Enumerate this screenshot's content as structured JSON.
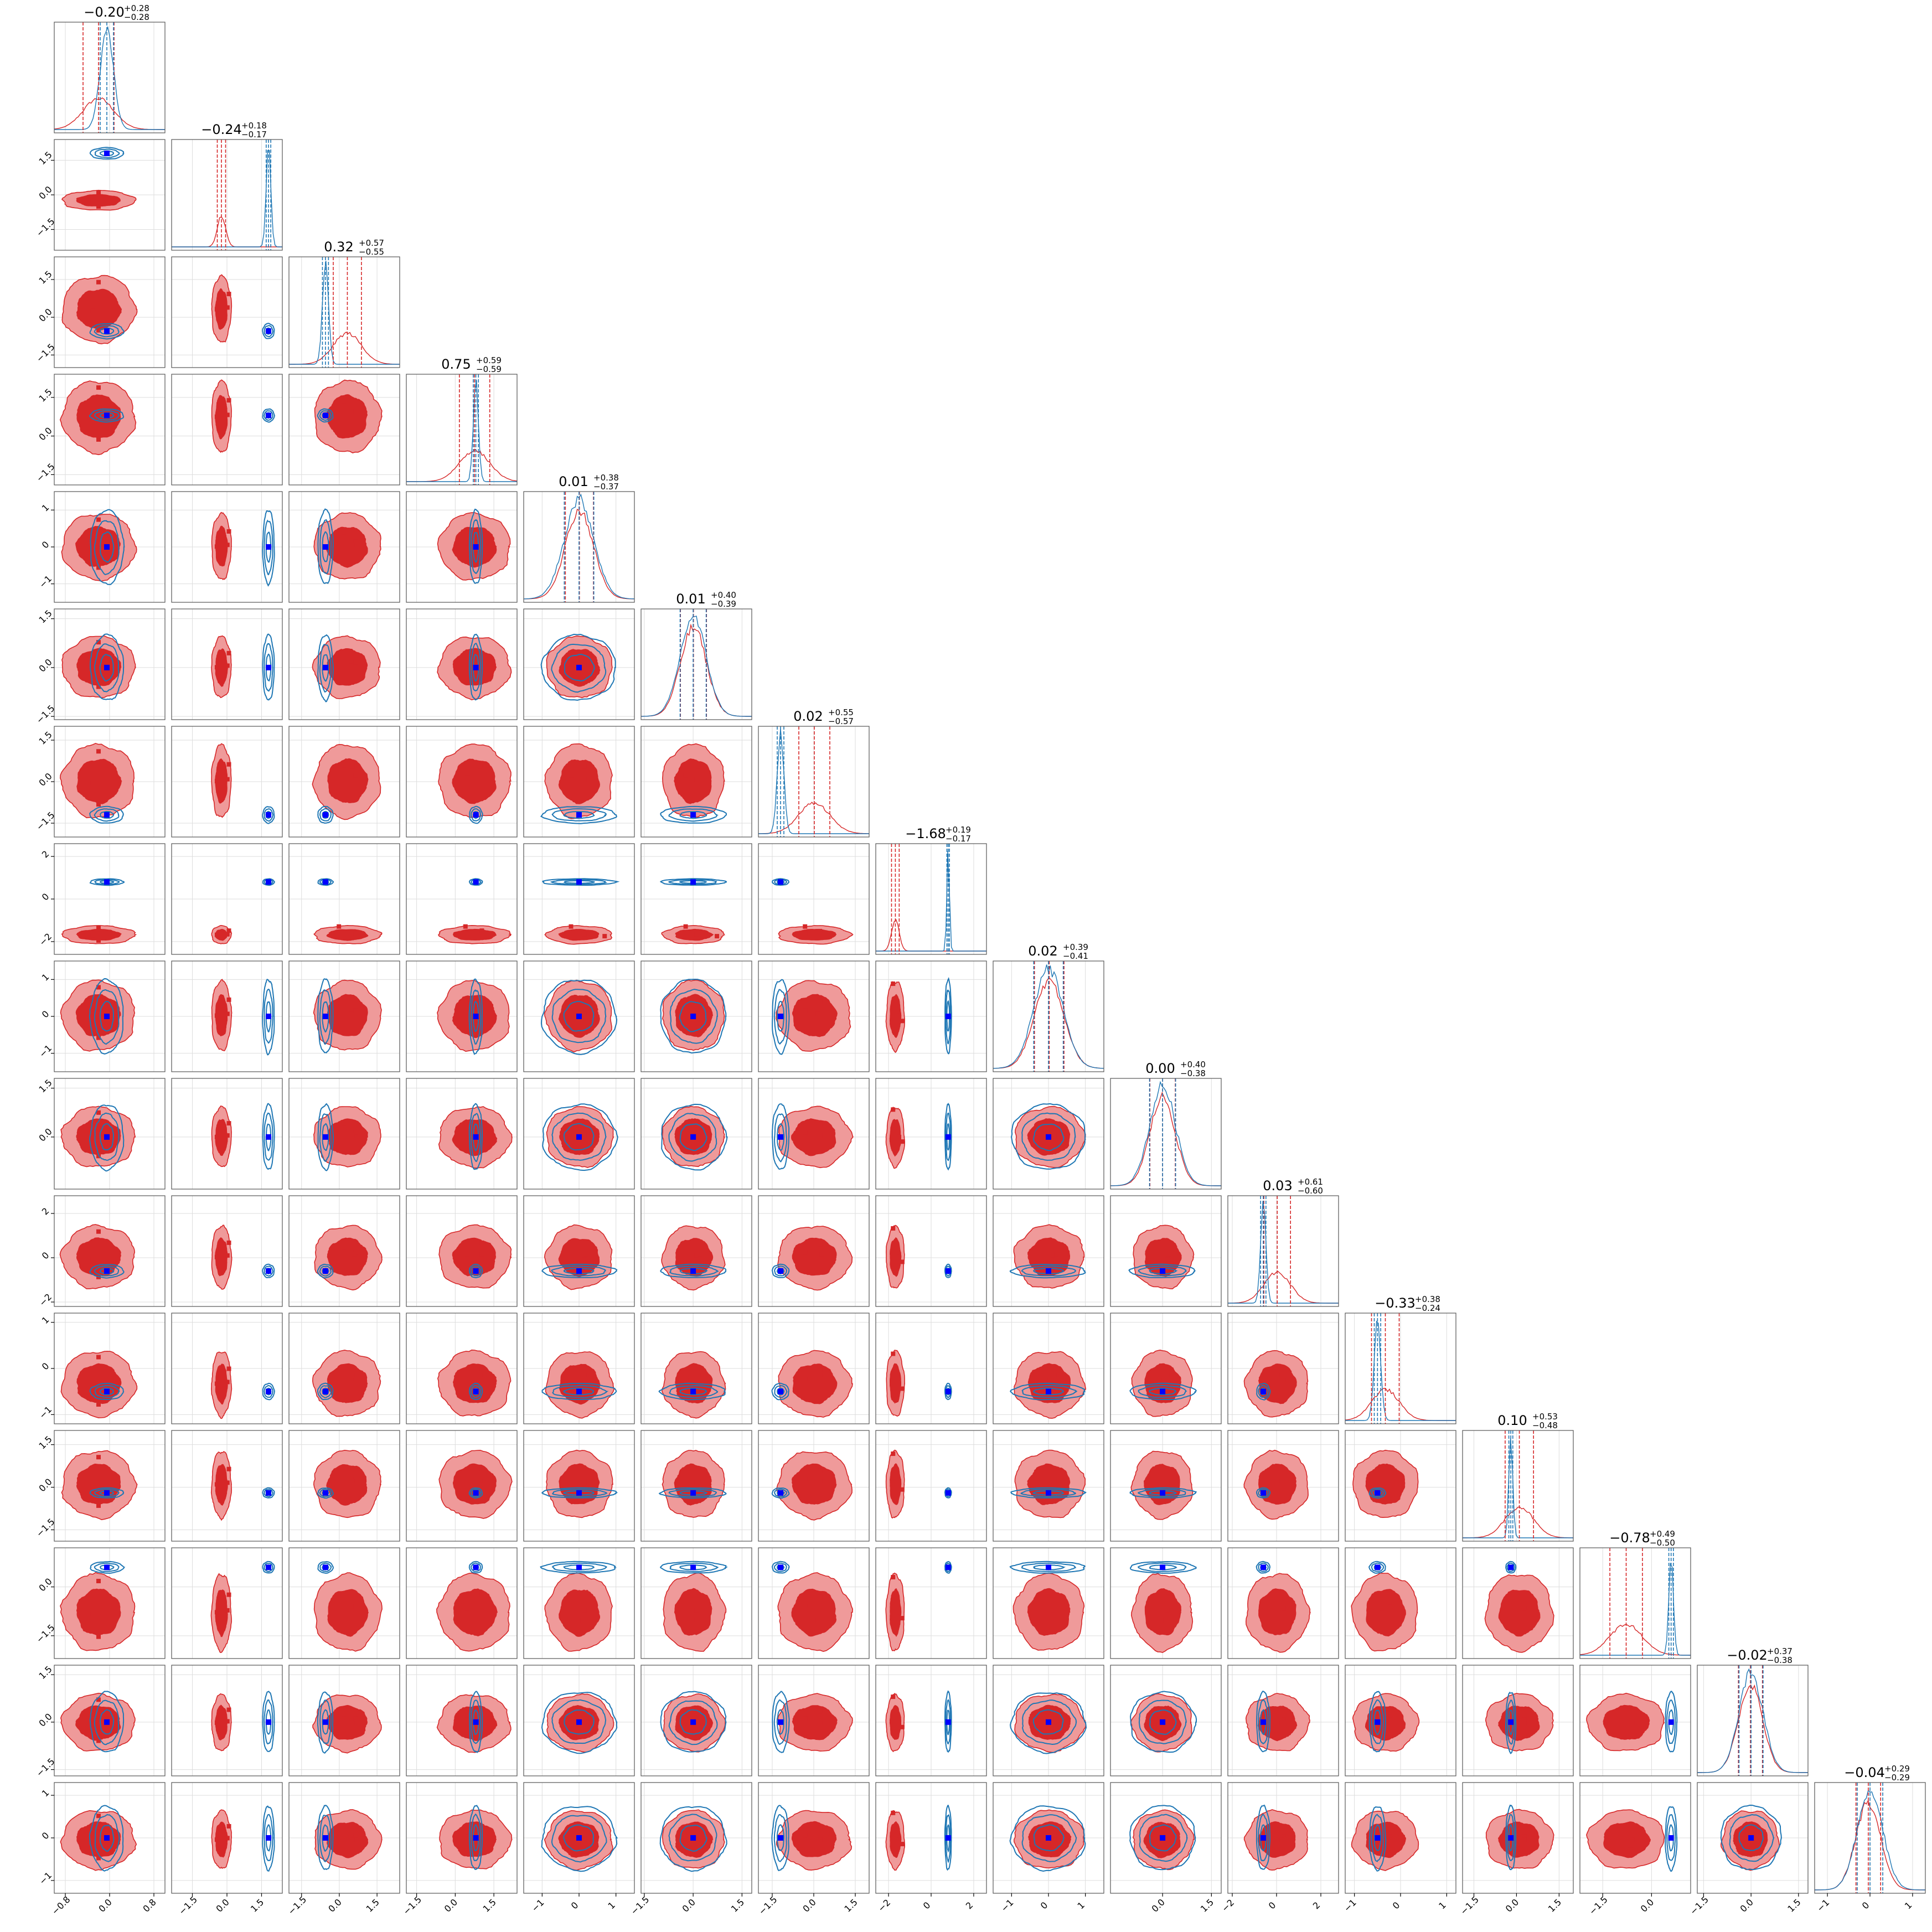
{
  "chart_data": {
    "type": "corner",
    "n_params": 16,
    "grid": true,
    "colors": {
      "red": "#d62728",
      "red_fill_outer": "#ef9a9a",
      "red_fill_inner": "#d62728",
      "blue": "#1f77b4",
      "truth": "#0000ff",
      "median_line": "#00006b",
      "panel_border": "#555555",
      "grid": "#dddddd"
    },
    "params": [
      {
        "index": 0,
        "title": "−0.20",
        "plus": "+0.28",
        "minus": "−0.28",
        "center": -0.2,
        "range": [
          -1.0,
          1.0
        ],
        "ticks": [
          "−0.8",
          "0.0",
          "0.8"
        ],
        "tick_values": [
          -0.8,
          0.0,
          0.8
        ],
        "blue_mean": -0.05,
        "blue_sd": 0.12,
        "red_mean": -0.2,
        "red_sd": 0.28,
        "truth": -0.05,
        "red_outliers": [
          [
            0.0,
            1.6
          ],
          [
            -0.3,
            -0.1
          ],
          [
            0.0,
            -1.25
          ]
        ]
      },
      {
        "index": 1,
        "title": "−0.24",
        "plus": "+0.18",
        "minus": "−0.17",
        "center": -0.24,
        "range": [
          -2.4,
          2.4
        ],
        "ticks": [
          "−1.5",
          "0.0",
          "1.5"
        ],
        "tick_values": [
          -1.5,
          0.0,
          1.5
        ],
        "blue_mean": 1.8,
        "blue_sd": 0.1,
        "red_mean": -0.24,
        "red_sd": 0.18,
        "truth": 1.8,
        "red_outliers": [
          [
            -0.9,
            0.0
          ],
          [
            1.2,
            0.1
          ],
          [
            1.5,
            0.9
          ]
        ]
      },
      {
        "index": 2,
        "title": "0.32",
        "plus": "+0.57",
        "minus": "−0.55",
        "center": 0.32,
        "range": [
          -2.0,
          2.4
        ],
        "ticks": [
          "−1.5",
          "0.0",
          "1.5"
        ],
        "tick_values": [
          -1.5,
          0.0,
          1.5
        ],
        "blue_mean": -0.55,
        "blue_sd": 0.12,
        "red_mean": 0.32,
        "red_sd": 0.56,
        "truth": -0.55,
        "red_outliers": [
          [
            -0.2,
            0.6
          ],
          [
            0.5,
            0.3
          ]
        ]
      },
      {
        "index": 3,
        "title": "0.75",
        "plus": "+0.59",
        "minus": "−0.59",
        "center": 0.75,
        "range": [
          -1.9,
          2.4
        ],
        "ticks": [
          "−1.5",
          "0.0",
          "1.5"
        ],
        "tick_values": [
          -1.5,
          0.0,
          1.5
        ],
        "blue_mean": 0.8,
        "blue_sd": 0.1,
        "red_mean": 0.75,
        "red_sd": 0.59,
        "truth": 0.8,
        "red_outliers": [
          [
            0.4,
            0.9
          ],
          [
            -0.4,
            0.2
          ]
        ]
      },
      {
        "index": 4,
        "title": "0.01",
        "plus": "+0.38",
        "minus": "−0.37",
        "center": 0.01,
        "range": [
          -1.5,
          1.5
        ],
        "ticks": [
          "−1",
          "0",
          "1"
        ],
        "tick_values": [
          -1,
          0,
          1
        ],
        "blue_mean": 0.0,
        "blue_sd": 0.4,
        "red_mean": 0.01,
        "red_sd": 0.38,
        "truth": 0.0,
        "red_outliers": [
          [
            0.3,
            0.1
          ]
        ]
      },
      {
        "index": 5,
        "title": "0.01",
        "plus": "+0.40",
        "minus": "−0.39",
        "center": 0.01,
        "range": [
          -1.6,
          1.8
        ],
        "ticks": [
          "−1.5",
          "0.0",
          "1.5"
        ],
        "tick_values": [
          -1.5,
          0.0,
          1.5
        ],
        "blue_mean": 0.0,
        "blue_sd": 0.4,
        "red_mean": 0.01,
        "red_sd": 0.4,
        "truth": 0.0,
        "red_outliers": [
          [
            0.2,
            0.1
          ]
        ]
      },
      {
        "index": 6,
        "title": "0.02",
        "plus": "+0.55",
        "minus": "−0.57",
        "center": 0.02,
        "range": [
          -2.0,
          2.0
        ],
        "ticks": [
          "−1.5",
          "0.0",
          "1.5"
        ],
        "tick_values": [
          -1.5,
          0.0,
          1.5
        ],
        "blue_mean": -1.2,
        "blue_sd": 0.12,
        "red_mean": 0.02,
        "red_sd": 0.56,
        "truth": -1.2,
        "red_outliers": [
          [
            0.3,
            0.8
          ],
          [
            -0.5,
            0.3
          ]
        ]
      },
      {
        "index": 7,
        "title": "−1.68",
        "plus": "+0.19",
        "minus": "−0.17",
        "center": -1.68,
        "range": [
          -2.6,
          2.6
        ],
        "ticks": [
          "−2",
          "0",
          "2"
        ],
        "tick_values": [
          -2,
          0,
          2
        ],
        "blue_mean": 0.8,
        "blue_sd": 0.06,
        "red_mean": -1.68,
        "red_sd": 0.18,
        "truth": 0.8,
        "red_outliers": [
          [
            -0.5,
            1.8
          ],
          [
            1.5,
            -0.3
          ],
          [
            0.8,
            0.0
          ]
        ]
      },
      {
        "index": 8,
        "title": "0.02",
        "plus": "+0.39",
        "minus": "−0.41",
        "center": 0.02,
        "range": [
          -1.5,
          1.5
        ],
        "ticks": [
          "−1",
          "0",
          "1"
        ],
        "tick_values": [
          -1,
          0,
          1
        ],
        "blue_mean": 0.0,
        "blue_sd": 0.4,
        "red_mean": 0.02,
        "red_sd": 0.4,
        "truth": 0.0,
        "red_outliers": [
          [
            0.2,
            0.1
          ]
        ]
      },
      {
        "index": 9,
        "title": "0.00",
        "plus": "+0.40",
        "minus": "−0.38",
        "center": 0.0,
        "range": [
          -1.6,
          1.8
        ],
        "ticks": [
          "0.0",
          "1.5"
        ],
        "tick_values": [
          0.0,
          1.5
        ],
        "blue_mean": 0.0,
        "blue_sd": 0.4,
        "red_mean": 0.0,
        "red_sd": 0.39,
        "truth": 0.0,
        "red_outliers": [
          [
            0.3,
            0.1
          ]
        ]
      },
      {
        "index": 10,
        "title": "0.03",
        "plus": "+0.61",
        "minus": "−0.60",
        "center": 0.03,
        "range": [
          -2.2,
          2.8
        ],
        "ticks": [
          "−2",
          "0",
          "2"
        ],
        "tick_values": [
          -2,
          0,
          2
        ],
        "blue_mean": -0.6,
        "blue_sd": 0.12,
        "red_mean": 0.03,
        "red_sd": 0.6,
        "truth": -0.6,
        "red_outliers": [
          [
            0.4,
            0.2
          ]
        ]
      },
      {
        "index": 11,
        "title": "−0.33",
        "plus": "+0.38",
        "minus": "−0.24",
        "center": -0.33,
        "range": [
          -1.2,
          1.2
        ],
        "ticks": [
          "−1",
          "0",
          "1"
        ],
        "tick_values": [
          -1,
          0,
          1
        ],
        "blue_mean": -0.5,
        "blue_sd": 0.07,
        "red_mean": -0.33,
        "red_sd": 0.3,
        "truth": -0.5,
        "red_outliers": [
          [
            0.3,
            0.5
          ],
          [
            -0.2,
            0.2
          ]
        ]
      },
      {
        "index": 12,
        "title": "0.10",
        "plus": "+0.53",
        "minus": "−0.48",
        "center": 0.1,
        "range": [
          -1.9,
          2.0
        ],
        "ticks": [
          "−1.5",
          "0.0",
          "1.5"
        ],
        "tick_values": [
          -1.5,
          0.0,
          1.5
        ],
        "blue_mean": -0.2,
        "blue_sd": 0.07,
        "red_mean": 0.1,
        "red_sd": 0.5,
        "truth": -0.2,
        "red_outliers": [
          [
            0.3,
            0.2
          ]
        ]
      },
      {
        "index": 13,
        "title": "−0.78",
        "plus": "+0.49",
        "minus": "−0.50",
        "center": -0.78,
        "range": [
          -2.2,
          1.2
        ],
        "ticks": [
          "−1.5",
          "0.0"
        ],
        "tick_values": [
          -1.5,
          0.0
        ],
        "blue_mean": 0.6,
        "blue_sd": 0.07,
        "red_mean": -0.78,
        "red_sd": 0.5,
        "truth": 0.6,
        "red_outliers": [
          [
            0.2,
            -0.4
          ]
        ]
      },
      {
        "index": 14,
        "title": "−0.02",
        "plus": "+0.37",
        "minus": "−0.38",
        "center": -0.02,
        "range": [
          -1.7,
          1.8
        ],
        "ticks": [
          "−1.5",
          "0.0",
          "1.5"
        ],
        "tick_values": [
          -1.5,
          0.0,
          1.5
        ],
        "blue_mean": 0.0,
        "blue_sd": 0.38,
        "red_mean": -0.02,
        "red_sd": 0.38,
        "truth": 0.0,
        "red_outliers": [
          [
            0.3,
            0.0
          ]
        ]
      },
      {
        "index": 15,
        "title": "−0.04",
        "plus": "+0.29",
        "minus": "−0.29",
        "center": -0.04,
        "range": [
          -1.3,
          1.3
        ],
        "ticks": [
          "−1",
          "0",
          "1"
        ],
        "tick_values": [
          -1,
          0,
          1
        ],
        "blue_mean": 0.0,
        "blue_sd": 0.3,
        "red_mean": -0.04,
        "red_sd": 0.29,
        "truth": 0.0,
        "red_outliers": [
          [
            0.3,
            0.0
          ]
        ]
      }
    ]
  }
}
